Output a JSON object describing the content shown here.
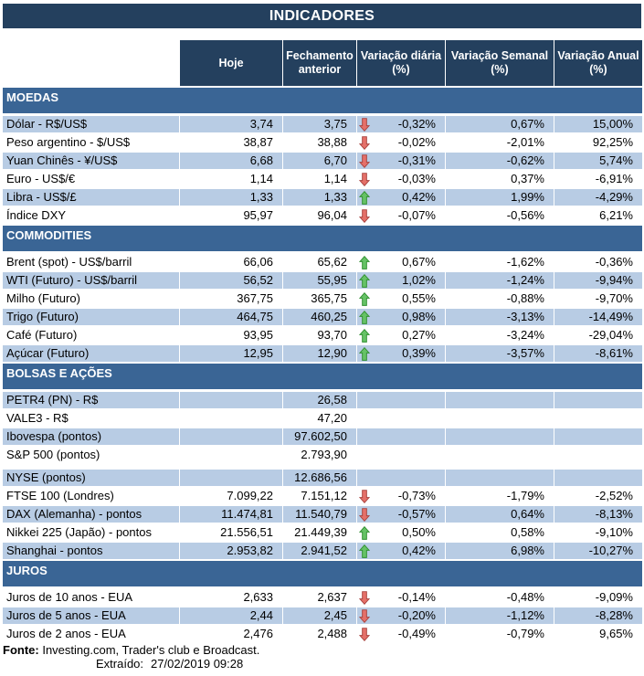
{
  "title": "INDICADORES",
  "columns": [
    "Hoje",
    "Fechamento anterior",
    "Variação diária (%)",
    "Variação Semanal (%)",
    "Variação Anual (%)"
  ],
  "colors": {
    "header_navy": "#24405E",
    "section_blue": "#3A6595",
    "row_stripe": "#B8CCE4",
    "arrow_up": "#66C266",
    "arrow_down": "#E57069"
  },
  "sections": [
    {
      "name": "MOEDAS",
      "rows": [
        {
          "label": "Dólar - R$/US$",
          "hoje": "3,74",
          "fechamento": "3,75",
          "arrow": "down",
          "var_diaria": "-0,32%",
          "var_semanal": "0,67%",
          "var_anual": "15,00%"
        },
        {
          "label": "Peso argentino - $/US$",
          "hoje": "38,87",
          "fechamento": "38,88",
          "arrow": "down",
          "var_diaria": "-0,02%",
          "var_semanal": "-2,01%",
          "var_anual": "92,25%"
        },
        {
          "label": "Yuan Chinês - ¥/US$",
          "hoje": "6,68",
          "fechamento": "6,70",
          "arrow": "down",
          "var_diaria": "-0,31%",
          "var_semanal": "-0,62%",
          "var_anual": "5,74%"
        },
        {
          "label": "Euro - US$/€",
          "hoje": "1,14",
          "fechamento": "1,14",
          "arrow": "down",
          "var_diaria": "-0,03%",
          "var_semanal": "0,37%",
          "var_anual": "-6,91%"
        },
        {
          "label": "Libra - US$/£",
          "hoje": "1,33",
          "fechamento": "1,33",
          "arrow": "up",
          "var_diaria": "0,42%",
          "var_semanal": "1,99%",
          "var_anual": "-4,29%"
        },
        {
          "label": "Índice DXY",
          "hoje": "95,97",
          "fechamento": "96,04",
          "arrow": "down",
          "var_diaria": "-0,07%",
          "var_semanal": "-0,56%",
          "var_anual": "6,21%"
        }
      ]
    },
    {
      "name": "COMMODITIES",
      "rows": [
        {
          "label": "Brent (spot) - US$/barril",
          "hoje": "66,06",
          "fechamento": "65,62",
          "arrow": "up",
          "var_diaria": "0,67%",
          "var_semanal": "-1,62%",
          "var_anual": "-0,36%"
        },
        {
          "label": "WTI (Futuro) - US$/barril",
          "hoje": "56,52",
          "fechamento": "55,95",
          "arrow": "up",
          "var_diaria": "1,02%",
          "var_semanal": "-1,24%",
          "var_anual": "-9,94%"
        },
        {
          "label": "Milho (Futuro)",
          "hoje": "367,75",
          "fechamento": "365,75",
          "arrow": "up",
          "var_diaria": "0,55%",
          "var_semanal": "-0,88%",
          "var_anual": "-9,70%"
        },
        {
          "label": "Trigo (Futuro)",
          "hoje": "464,75",
          "fechamento": "460,25",
          "arrow": "up",
          "var_diaria": "0,98%",
          "var_semanal": "-3,13%",
          "var_anual": "-14,49%"
        },
        {
          "label": "Café (Futuro)",
          "hoje": "93,95",
          "fechamento": "93,70",
          "arrow": "up",
          "var_diaria": "0,27%",
          "var_semanal": "-3,24%",
          "var_anual": "-29,04%"
        },
        {
          "label": "Açúcar (Futuro)",
          "hoje": "12,95",
          "fechamento": "12,90",
          "arrow": "up",
          "var_diaria": "0,39%",
          "var_semanal": "-3,57%",
          "var_anual": "-8,61%"
        }
      ]
    },
    {
      "name": "BOLSAS E AÇÕES",
      "rows": [
        {
          "label": "PETR4 (PN) - R$",
          "hoje": "",
          "fechamento": "26,58",
          "arrow": null,
          "var_diaria": "",
          "var_semanal": "",
          "var_anual": ""
        },
        {
          "label": "VALE3 - R$",
          "hoje": "",
          "fechamento": "47,20",
          "arrow": null,
          "var_diaria": "",
          "var_semanal": "",
          "var_anual": ""
        },
        {
          "label": "Ibovespa (pontos)",
          "hoje": "",
          "fechamento": "97.602,50",
          "arrow": null,
          "var_diaria": "",
          "var_semanal": "",
          "var_anual": ""
        },
        {
          "label": "S&P 500 (pontos)",
          "hoje": "",
          "fechamento": "2.793,90",
          "arrow": null,
          "var_diaria": "",
          "var_semanal": "",
          "var_anual": ""
        },
        {
          "label": "NYSE (pontos)",
          "hoje": "",
          "fechamento": "12.686,56",
          "arrow": null,
          "var_diaria": "",
          "var_semanal": "",
          "var_anual": "",
          "spacer_before": true
        },
        {
          "label": "FTSE 100 (Londres)",
          "hoje": "7.099,22",
          "fechamento": "7.151,12",
          "arrow": "down",
          "var_diaria": "-0,73%",
          "var_semanal": "-1,79%",
          "var_anual": "-2,52%"
        },
        {
          "label": "DAX (Alemanha) - pontos",
          "hoje": "11.474,81",
          "fechamento": "11.540,79",
          "arrow": "down",
          "var_diaria": "-0,57%",
          "var_semanal": "0,64%",
          "var_anual": "-8,13%"
        },
        {
          "label": "Nikkei 225 (Japão) - pontos",
          "hoje": "21.556,51",
          "fechamento": "21.449,39",
          "arrow": "up",
          "var_diaria": "0,50%",
          "var_semanal": "0,58%",
          "var_anual": "-9,10%"
        },
        {
          "label": "Shanghai - pontos",
          "hoje": "2.953,82",
          "fechamento": "2.941,52",
          "arrow": "up",
          "var_diaria": "0,42%",
          "var_semanal": "6,98%",
          "var_anual": "-10,27%"
        }
      ]
    },
    {
      "name": "JUROS",
      "rows": [
        {
          "label": "Juros de 10 anos - EUA",
          "hoje": "2,633",
          "fechamento": "2,637",
          "arrow": "down",
          "var_diaria": "-0,14%",
          "var_semanal": "-0,48%",
          "var_anual": "-9,09%"
        },
        {
          "label": "Juros de 5 anos - EUA",
          "hoje": "2,44",
          "fechamento": "2,45",
          "arrow": "down",
          "var_diaria": "-0,20%",
          "var_semanal": "-1,12%",
          "var_anual": "-8,28%"
        },
        {
          "label": "Juros de 2 anos - EUA",
          "hoje": "2,476",
          "fechamento": "2,488",
          "arrow": "down",
          "var_diaria": "-0,49%",
          "var_semanal": "-0,79%",
          "var_anual": "9,65%"
        }
      ]
    }
  ],
  "footer": {
    "fonte_label": "Fonte:",
    "fonte_text": "Investing.com, Trader's club e Broadcast.",
    "extraido_label": "Extraído:",
    "extraido_value": "27/02/2019 09:28"
  }
}
